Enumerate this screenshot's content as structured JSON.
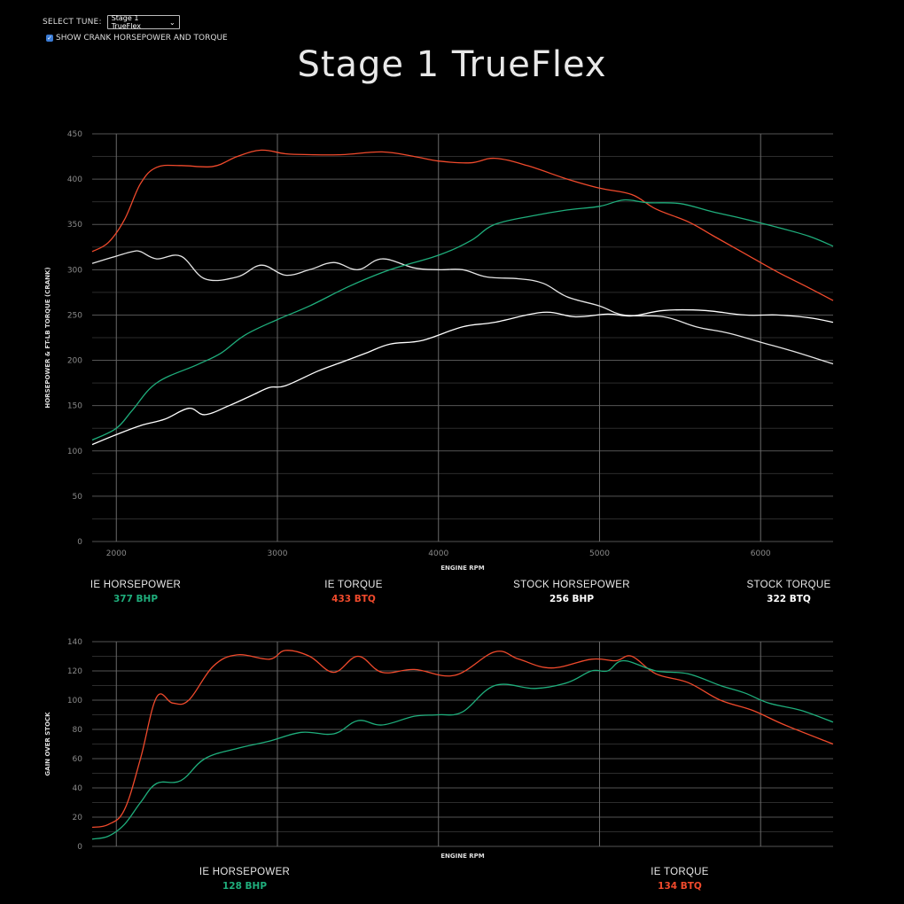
{
  "controls": {
    "select_label": "SELECT TUNE:",
    "select_value": "Stage 1 TrueFlex",
    "checkbox_label": "SHOW CRANK HORSEPOWER AND TORQUE",
    "checkbox_checked": true
  },
  "title": "Stage 1 TrueFlex",
  "colors": {
    "ie_hp": "#1fae7c",
    "ie_tq": "#f04a2c",
    "stock_hp": "#ffffff",
    "stock_tq": "#e5e5e5",
    "grid": "#555555",
    "axis_text": "#8a8a8a"
  },
  "legend_top": [
    {
      "name": "IE HORSEPOWER",
      "value": "377 BHP",
      "color": "#1fae7c"
    },
    {
      "name": "IE TORQUE",
      "value": "433 BTQ",
      "color": "#f04a2c"
    },
    {
      "name": "STOCK HORSEPOWER",
      "value": "256 BHP",
      "color": "#ffffff"
    },
    {
      "name": "STOCK TORQUE",
      "value": "322 BTQ",
      "color": "#ffffff"
    }
  ],
  "legend_bottom": [
    {
      "name": "IE HORSEPOWER",
      "value": "128 BHP",
      "color": "#1fae7c"
    },
    {
      "name": "IE TORQUE",
      "value": "134 BTQ",
      "color": "#f04a2c"
    }
  ],
  "chart_data": [
    {
      "type": "line",
      "ylabel": "HORSEPOWER & FT-LB TORQUE (CRANK)",
      "xlabel": "ENGINE RPM",
      "xlim": [
        1850,
        6450
      ],
      "ylim": [
        0,
        450
      ],
      "xticks": [
        2000,
        3000,
        4000,
        5000,
        6000
      ],
      "yticks": [
        0,
        50,
        100,
        150,
        200,
        250,
        300,
        350,
        400,
        450
      ],
      "grid": true,
      "series": [
        {
          "name": "IE HORSEPOWER",
          "color": "#1fae7c",
          "x": [
            1850,
            2000,
            2100,
            2250,
            2500,
            2650,
            2800,
            3000,
            3200,
            3450,
            3700,
            4000,
            4200,
            4350,
            4600,
            4800,
            5000,
            5150,
            5300,
            5500,
            5700,
            5900,
            6100,
            6300,
            6450
          ],
          "y": [
            112,
            125,
            145,
            175,
            195,
            208,
            228,
            245,
            260,
            282,
            300,
            316,
            332,
            350,
            360,
            366,
            370,
            377,
            374,
            373,
            364,
            356,
            347,
            337,
            326
          ]
        },
        {
          "name": "IE TORQUE",
          "color": "#f04a2c",
          "x": [
            1850,
            1950,
            2050,
            2150,
            2250,
            2400,
            2600,
            2750,
            2900,
            3050,
            3200,
            3400,
            3650,
            3850,
            4000,
            4200,
            4350,
            4550,
            4800,
            5000,
            5200,
            5350,
            5550,
            5700,
            5900,
            6100,
            6300,
            6450
          ],
          "y": [
            320,
            330,
            355,
            395,
            413,
            415,
            414,
            425,
            432,
            428,
            427,
            427,
            430,
            425,
            420,
            418,
            423,
            415,
            400,
            390,
            383,
            367,
            353,
            338,
            318,
            298,
            280,
            266
          ]
        },
        {
          "name": "STOCK HORSEPOWER",
          "color": "#ffffff",
          "x": [
            1850,
            2000,
            2150,
            2300,
            2450,
            2550,
            2700,
            2850,
            2950,
            3050,
            3250,
            3400,
            3550,
            3700,
            3900,
            4150,
            4350,
            4650,
            4850,
            5050,
            5200,
            5400,
            5650,
            5900,
            6100,
            6300,
            6450
          ],
          "y": [
            107,
            118,
            128,
            135,
            147,
            140,
            150,
            162,
            170,
            172,
            188,
            198,
            208,
            218,
            222,
            237,
            242,
            253,
            248,
            251,
            249,
            255,
            255,
            250,
            250,
            247,
            242
          ]
        },
        {
          "name": "STOCK TORQUE",
          "color": "#e5e5e5",
          "x": [
            1850,
            2000,
            2100,
            2150,
            2250,
            2400,
            2550,
            2750,
            2900,
            3050,
            3200,
            3350,
            3500,
            3650,
            3850,
            4000,
            4150,
            4300,
            4500,
            4650,
            4800,
            5000,
            5150,
            5400,
            5600,
            5800,
            6000,
            6200,
            6450
          ],
          "y": [
            307,
            315,
            320,
            320,
            312,
            315,
            290,
            292,
            305,
            294,
            300,
            308,
            300,
            312,
            302,
            300,
            300,
            292,
            290,
            285,
            270,
            260,
            250,
            248,
            237,
            230,
            220,
            210,
            196
          ]
        }
      ]
    },
    {
      "type": "line",
      "ylabel": "GAIN OVER STOCK",
      "xlabel": "ENGINE RPM",
      "xlim": [
        1850,
        6450
      ],
      "ylim": [
        0,
        140
      ],
      "xticks": [
        2000,
        3000,
        4000,
        5000,
        6000
      ],
      "yticks": [
        0,
        20,
        40,
        60,
        80,
        100,
        120,
        140
      ],
      "grid": true,
      "series": [
        {
          "name": "IE HORSEPOWER",
          "color": "#1fae7c",
          "x": [
            1850,
            1950,
            2050,
            2150,
            2250,
            2400,
            2550,
            2750,
            2950,
            3150,
            3350,
            3500,
            3650,
            3850,
            4000,
            4150,
            4350,
            4600,
            4800,
            4950,
            5050,
            5150,
            5350,
            5550,
            5750,
            5900,
            6050,
            6250,
            6450
          ],
          "y": [
            5,
            7,
            15,
            30,
            43,
            45,
            60,
            67,
            72,
            78,
            77,
            86,
            83,
            89,
            90,
            92,
            110,
            108,
            112,
            120,
            120,
            127,
            120,
            118,
            110,
            105,
            98,
            93,
            85
          ]
        },
        {
          "name": "IE TORQUE",
          "color": "#f04a2c",
          "x": [
            1850,
            1950,
            2050,
            2150,
            2250,
            2350,
            2450,
            2600,
            2750,
            2950,
            3050,
            3200,
            3350,
            3500,
            3650,
            3850,
            4100,
            4350,
            4500,
            4700,
            4950,
            5100,
            5200,
            5350,
            5550,
            5750,
            5950,
            6150,
            6450
          ],
          "y": [
            13,
            15,
            25,
            60,
            102,
            98,
            100,
            123,
            131,
            128,
            134,
            130,
            119,
            130,
            119,
            121,
            117,
            133,
            128,
            122,
            128,
            127,
            130,
            118,
            112,
            100,
            93,
            83,
            70
          ]
        }
      ]
    }
  ]
}
